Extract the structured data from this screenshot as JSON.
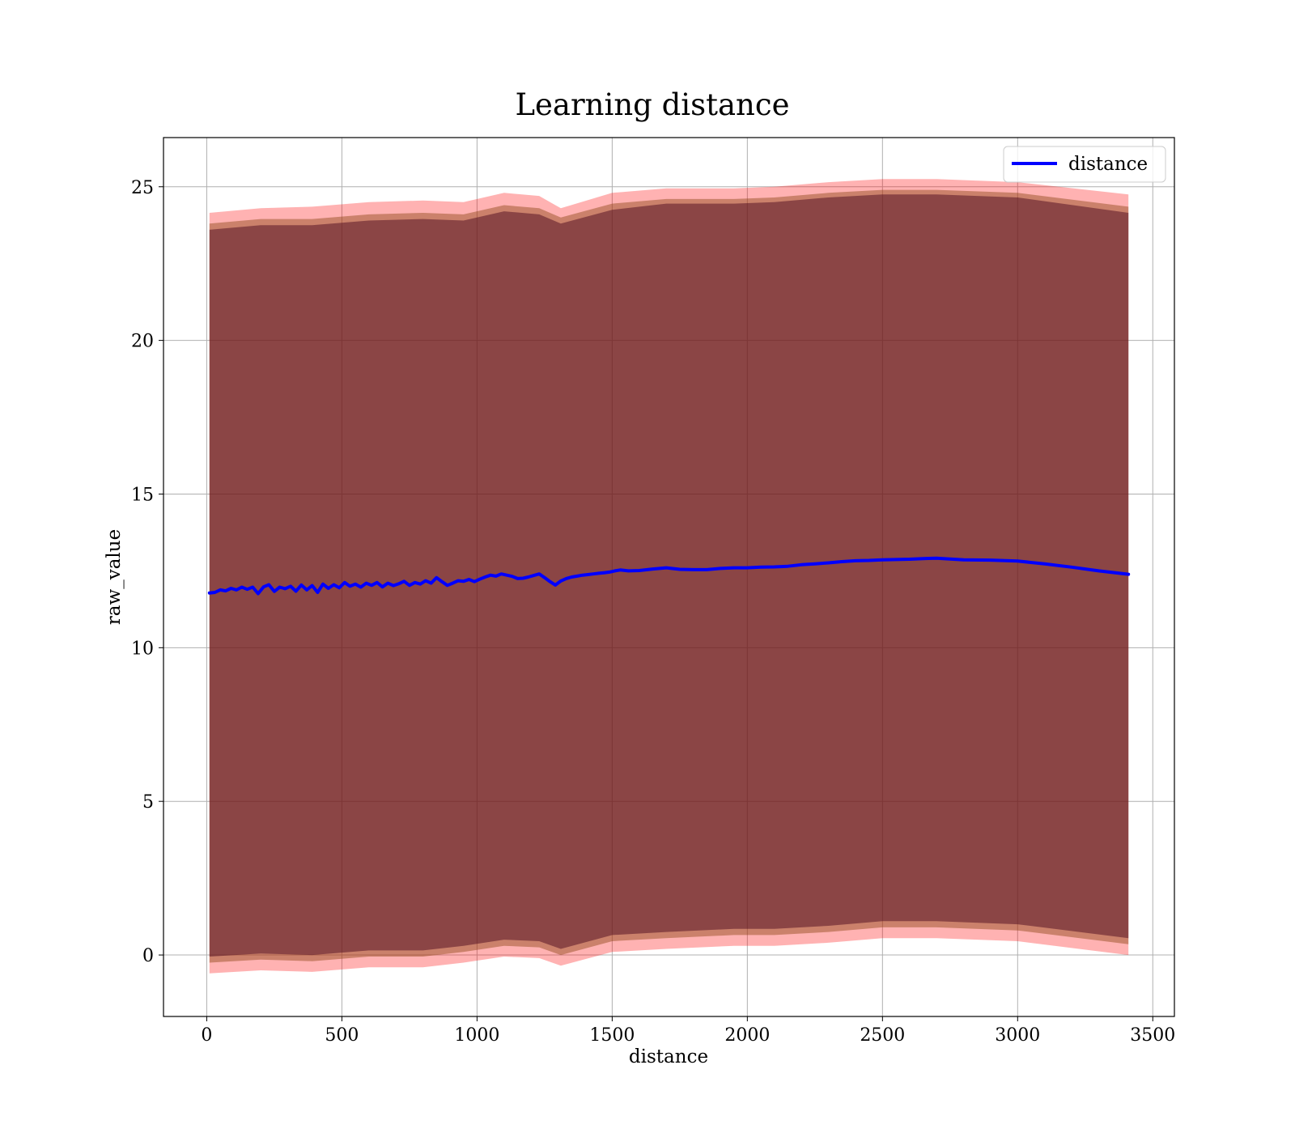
{
  "chart_data": {
    "type": "line",
    "title": "Learning distance",
    "xlabel": "distance",
    "ylabel": "raw_value",
    "xlim": [
      -160,
      3580
    ],
    "ylim": [
      -2.0,
      26.6
    ],
    "xticks": [
      0,
      500,
      1000,
      1500,
      2000,
      2500,
      3000,
      3500
    ],
    "yticks": [
      0,
      5,
      10,
      15,
      20,
      25
    ],
    "grid": true,
    "legend_position": "top-right",
    "colors": {
      "line": "#0000ff",
      "band_outer": "#ff0000",
      "band_inner": "#8b4513",
      "band_core": "#4b0a20",
      "grid": "#b0b0b0"
    },
    "series": [
      {
        "name": "distance",
        "style": "line",
        "x": [
          10,
          30,
          50,
          70,
          90,
          110,
          130,
          150,
          170,
          190,
          210,
          230,
          250,
          270,
          290,
          310,
          330,
          350,
          370,
          390,
          410,
          430,
          450,
          470,
          490,
          510,
          530,
          550,
          570,
          590,
          610,
          630,
          650,
          670,
          690,
          710,
          730,
          750,
          770,
          790,
          810,
          830,
          850,
          870,
          890,
          910,
          930,
          950,
          970,
          990,
          1010,
          1030,
          1050,
          1070,
          1090,
          1110,
          1130,
          1150,
          1170,
          1190,
          1210,
          1230,
          1250,
          1270,
          1290,
          1310,
          1330,
          1350,
          1370,
          1390,
          1410,
          1430,
          1450,
          1470,
          1490,
          1510,
          1530,
          1560,
          1600,
          1650,
          1700,
          1750,
          1800,
          1850,
          1900,
          1950,
          2000,
          2050,
          2100,
          2150,
          2200,
          2250,
          2300,
          2350,
          2400,
          2450,
          2500,
          2550,
          2600,
          2650,
          2700,
          2800,
          2900,
          3000,
          3100,
          3200,
          3300,
          3410
        ],
        "values": [
          11.78,
          11.8,
          11.88,
          11.85,
          11.93,
          11.88,
          11.97,
          11.9,
          11.97,
          11.76,
          11.98,
          12.05,
          11.83,
          11.97,
          11.92,
          12.0,
          11.84,
          12.04,
          11.88,
          12.02,
          11.8,
          12.07,
          11.93,
          12.05,
          11.95,
          12.12,
          12.0,
          12.07,
          11.97,
          12.1,
          12.03,
          12.12,
          11.98,
          12.1,
          12.02,
          12.08,
          12.16,
          12.03,
          12.12,
          12.07,
          12.18,
          12.1,
          12.28,
          12.15,
          12.03,
          12.1,
          12.18,
          12.16,
          12.22,
          12.15,
          12.23,
          12.3,
          12.36,
          12.33,
          12.4,
          12.36,
          12.32,
          12.25,
          12.26,
          12.3,
          12.35,
          12.4,
          12.28,
          12.15,
          12.04,
          12.17,
          12.25,
          12.3,
          12.33,
          12.36,
          12.38,
          12.4,
          12.42,
          12.44,
          12.46,
          12.5,
          12.53,
          12.5,
          12.51,
          12.56,
          12.6,
          12.55,
          12.54,
          12.54,
          12.58,
          12.6,
          12.6,
          12.62,
          12.63,
          12.65,
          12.7,
          12.73,
          12.76,
          12.8,
          12.83,
          12.84,
          12.86,
          12.87,
          12.88,
          12.9,
          12.91,
          12.86,
          12.85,
          12.82,
          12.73,
          12.62,
          12.5,
          12.39
        ]
      }
    ],
    "bands": [
      {
        "style": "band",
        "color": "#ff0000",
        "x": [
          10,
          200,
          390,
          600,
          800,
          950,
          1100,
          1230,
          1310,
          1500,
          1700,
          1950,
          2100,
          2300,
          2500,
          2700,
          3000,
          3410
        ],
        "upper": [
          24.15,
          24.3,
          24.35,
          24.5,
          24.55,
          24.5,
          24.8,
          24.7,
          24.3,
          24.8,
          24.95,
          24.95,
          25.0,
          25.15,
          25.25,
          25.25,
          25.15,
          24.75
        ],
        "lower": [
          -0.6,
          -0.5,
          -0.55,
          -0.4,
          -0.4,
          -0.25,
          -0.05,
          -0.1,
          -0.35,
          0.1,
          0.2,
          0.3,
          0.3,
          0.4,
          0.55,
          0.55,
          0.45,
          0.0
        ]
      },
      {
        "style": "band",
        "color": "#8b4513",
        "x": [
          10,
          200,
          390,
          600,
          800,
          950,
          1100,
          1230,
          1310,
          1500,
          1700,
          1950,
          2100,
          2300,
          2500,
          2700,
          3000,
          3410
        ],
        "upper": [
          23.8,
          23.95,
          23.95,
          24.1,
          24.15,
          24.1,
          24.4,
          24.3,
          24.0,
          24.45,
          24.6,
          24.6,
          24.65,
          24.8,
          24.9,
          24.9,
          24.8,
          24.35
        ],
        "lower": [
          -0.25,
          -0.15,
          -0.2,
          -0.05,
          -0.05,
          0.1,
          0.3,
          0.25,
          0.0,
          0.45,
          0.55,
          0.65,
          0.65,
          0.75,
          0.9,
          0.9,
          0.8,
          0.35
        ]
      },
      {
        "style": "band",
        "color": "#4b0a20",
        "x": [
          10,
          200,
          390,
          600,
          800,
          950,
          1100,
          1230,
          1310,
          1500,
          1700,
          1950,
          2100,
          2300,
          2500,
          2700,
          3000,
          3410
        ],
        "upper": [
          23.6,
          23.75,
          23.75,
          23.9,
          23.95,
          23.9,
          24.2,
          24.1,
          23.8,
          24.25,
          24.45,
          24.45,
          24.5,
          24.65,
          24.75,
          24.75,
          24.65,
          24.15
        ],
        "lower": [
          -0.05,
          0.05,
          0.0,
          0.15,
          0.15,
          0.3,
          0.5,
          0.45,
          0.2,
          0.65,
          0.75,
          0.85,
          0.85,
          0.95,
          1.1,
          1.1,
          1.0,
          0.55
        ]
      }
    ]
  }
}
